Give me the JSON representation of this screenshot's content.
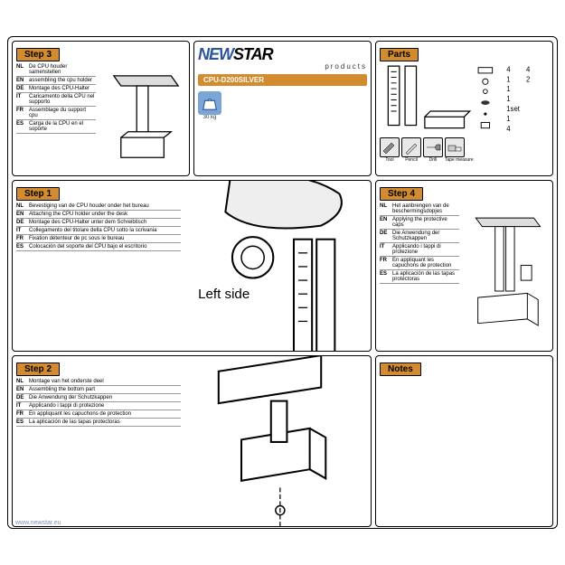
{
  "logo": {
    "brand_left": "NEW",
    "brand_right": "STAR",
    "subtitle": "products"
  },
  "product_code": "CPU-D200SILVER",
  "weight": {
    "value": "30 kg"
  },
  "parts": {
    "label": "Parts",
    "qty_list": [
      "4",
      "1",
      "1",
      "1",
      "1set",
      "1",
      "4",
      "4",
      "2"
    ],
    "tools": [
      "Tool",
      "Pencil",
      "Drill",
      "Tape measure"
    ]
  },
  "steps": {
    "step1": {
      "label": "Step 1",
      "rows": [
        {
          "code": "NL",
          "text": "Bevestiging van de CPU houder onder het bureau"
        },
        {
          "code": "EN",
          "text": "Attaching the CPU holder under the desk"
        },
        {
          "code": "DE",
          "text": "Montage des CPU-Halter unter dem Schreibtisch"
        },
        {
          "code": "IT",
          "text": "Collegamento del titolare della CPU sotto la scrivania"
        },
        {
          "code": "FR",
          "text": "Fixation détenteur de pc sous le bureau"
        },
        {
          "code": "ES",
          "text": "Colocación del soporte del CPU bajo el escritorio"
        }
      ],
      "diagram_label": "Left side"
    },
    "step2": {
      "label": "Step 2",
      "rows": [
        {
          "code": "NL",
          "text": "Montage van het onderste deel"
        },
        {
          "code": "EN",
          "text": "Assembling the bottom part"
        },
        {
          "code": "DE",
          "text": "Die Anwendung der Schutzkappen"
        },
        {
          "code": "IT",
          "text": "Applicando i tappi di protezione"
        },
        {
          "code": "FR",
          "text": "En appliquant les capuchons de protection"
        },
        {
          "code": "ES",
          "text": "La aplicación de las tapas protectoras"
        }
      ]
    },
    "step3": {
      "label": "Step 3",
      "rows": [
        {
          "code": "NL",
          "text": "De CPU houder samenstellen"
        },
        {
          "code": "EN",
          "text": "assembling the cpu holder"
        },
        {
          "code": "DE",
          "text": "Montage des CPU-Halter"
        },
        {
          "code": "IT",
          "text": "Caricamento della CPU nel supporto"
        },
        {
          "code": "FR",
          "text": "Assemblage du support cpu"
        },
        {
          "code": "ES",
          "text": "Carga de la CPU en el soporte"
        }
      ]
    },
    "step4": {
      "label": "Step 4",
      "rows": [
        {
          "code": "NL",
          "text": "Het aanbrengen van de beschermingsdopjes"
        },
        {
          "code": "EN",
          "text": "Applying the protective caps"
        },
        {
          "code": "DE",
          "text": "Die Anwendung der Schutzkappen"
        },
        {
          "code": "IT",
          "text": "Applicando i tappi di protezione"
        },
        {
          "code": "FR",
          "text": "En appliquant les capuchons de protection"
        },
        {
          "code": "ES",
          "text": "La aplicación de las tapas protectoras"
        }
      ]
    },
    "notes": {
      "label": "Notes"
    }
  },
  "footer_url": "www.newstar.eu",
  "colors": {
    "accent": "#d28b2f",
    "brand_blue": "#2b5597",
    "weight_bg": "#7aa6d6",
    "border": "#000000"
  }
}
